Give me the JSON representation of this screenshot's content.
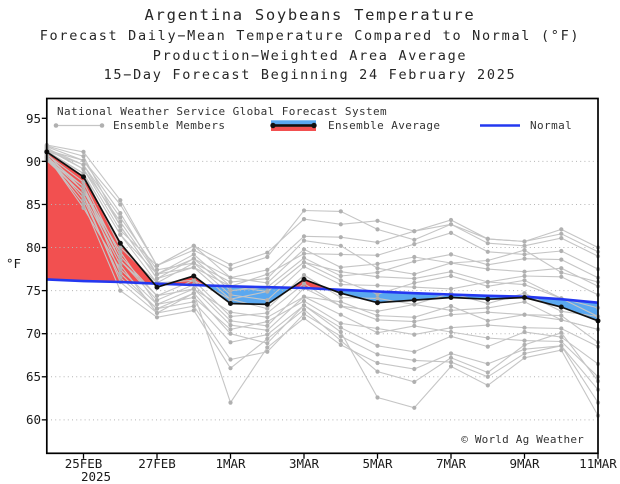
{
  "header": {
    "title": "Argentina Soybeans Temperature",
    "subtitle1": "Forecast Daily−Mean Temperature Compared to Normal (°F)",
    "subtitle2": "Production−Weighted Area Average",
    "subtitle3": "15−Day Forecast Beginning 24 February 2025"
  },
  "legend": {
    "source_label": "National Weather Service Global Forecast System",
    "members_label": "Ensemble Members",
    "average_label": "Ensemble Average",
    "normal_label": "Normal"
  },
  "footer_note": "© World Ag Weather",
  "colors": {
    "red_fill": "#f25050",
    "blue_fill": "#5aa8f0",
    "normal_line": "#2438f0",
    "average_line": "#111111",
    "member_line": "#c5c5c5",
    "member_dot": "#b0b0b0",
    "grid": "#b5b5b5",
    "frame": "#000000"
  },
  "chart_data": {
    "type": "line",
    "title": "Argentina Soybeans Temperature",
    "ylabel": "°F",
    "ylim": [
      56.2,
      97.4
    ],
    "y_ticks": [
      60,
      65,
      70,
      75,
      80,
      85,
      90,
      95
    ],
    "gridline_levels": [
      60,
      65,
      70,
      75,
      80,
      85,
      90
    ],
    "x_categories": [
      "24FEB",
      "25FEB",
      "26FEB",
      "27FEB",
      "28FEB",
      "1MAR",
      "2MAR",
      "3MAR",
      "4MAR",
      "5MAR",
      "6MAR",
      "7MAR",
      "8MAR",
      "9MAR",
      "10MAR",
      "11MAR"
    ],
    "x_tick_labels": [
      "25FEB",
      "27FEB",
      "1MAR",
      "3MAR",
      "5MAR",
      "7MAR",
      "9MAR",
      "11MAR"
    ],
    "x_tick_day_indices": [
      1,
      3,
      5,
      7,
      9,
      11,
      13,
      15
    ],
    "x_year_label": "2025",
    "series": [
      {
        "name": "Ensemble Average",
        "values": [
          91.1,
          88.2,
          80.5,
          75.4,
          76.7,
          73.5,
          73.4,
          76.3,
          74.7,
          73.6,
          73.9,
          74.2,
          74.0,
          74.2,
          73.1,
          71.5
        ]
      },
      {
        "name": "Normal",
        "values": [
          76.3,
          76.1,
          76.0,
          75.8,
          75.65,
          75.5,
          75.4,
          75.3,
          75.1,
          74.9,
          74.7,
          74.55,
          74.4,
          74.3,
          74.0,
          73.6
        ]
      }
    ],
    "members": [
      [
        91.5,
        89.6,
        83.5,
        77.4,
        78.2,
        76.0,
        76.4,
        80.8,
        80.2,
        77.6,
        76.9,
        78.2,
        77.5,
        77.2,
        77.6,
        75.5
      ],
      [
        91.3,
        90.1,
        85.0,
        77.9,
        79.7,
        77.5,
        78.9,
        84.3,
        84.2,
        82.1,
        80.9,
        82.7,
        80.5,
        80.2,
        81.1,
        79.0
      ],
      [
        90.5,
        87.1,
        78.5,
        73.9,
        75.7,
        71.5,
        70.9,
        75.3,
        73.2,
        71.6,
        71.4,
        72.2,
        72.5,
        72.2,
        72.1,
        69.0
      ],
      [
        91.8,
        90.6,
        82.5,
        76.4,
        78.7,
        75.0,
        75.4,
        78.8,
        76.7,
        77.1,
        78.4,
        79.2,
        78.0,
        78.7,
        78.6,
        76.5
      ],
      [
        90.7,
        85.6,
        76.5,
        72.9,
        74.7,
        70.0,
        68.9,
        73.3,
        70.7,
        68.6,
        67.9,
        69.7,
        68.5,
        70.2,
        69.6,
        66.5
      ],
      [
        91.2,
        88.6,
        81.5,
        75.9,
        78.2,
        74.5,
        73.9,
        77.8,
        75.7,
        75.6,
        75.4,
        75.2,
        76.0,
        75.7,
        74.1,
        72.0
      ],
      [
        90.4,
        86.6,
        79.5,
        73.4,
        74.2,
        70.5,
        71.4,
        73.8,
        71.2,
        70.6,
        69.9,
        70.7,
        71.0,
        70.7,
        70.6,
        68.5
      ],
      [
        91.4,
        89.1,
        83.0,
        76.9,
        79.2,
        75.5,
        76.9,
        79.3,
        79.2,
        79.1,
        80.4,
        81.7,
        79.5,
        79.2,
        79.6,
        77.5
      ],
      [
        90.6,
        84.6,
        77.5,
        73.4,
        75.2,
        72.5,
        71.9,
        74.3,
        73.7,
        72.1,
        71.9,
        73.2,
        71.5,
        72.2,
        71.6,
        70.5
      ],
      [
        91.6,
        89.1,
        82.0,
        77.9,
        80.2,
        76.5,
        77.4,
        81.3,
        81.2,
        80.6,
        81.9,
        82.7,
        81.0,
        80.7,
        81.6,
        79.5
      ],
      [
        90.8,
        87.6,
        79.0,
        74.4,
        76.2,
        72.0,
        72.4,
        75.8,
        73.2,
        72.6,
        73.4,
        72.7,
        73.0,
        73.7,
        71.6,
        70.5
      ],
      [
        91.1,
        88.6,
        80.0,
        75.9,
        76.2,
        74.0,
        72.9,
        76.8,
        74.2,
        74.1,
        73.4,
        74.7,
        73.5,
        74.7,
        72.6,
        72.0
      ],
      [
        90.3,
        86.1,
        78.0,
        72.4,
        74.7,
        62.0,
        68.4,
        71.8,
        68.7,
        66.6,
        65.9,
        67.7,
        66.5,
        68.2,
        68.6,
        63.5
      ],
      [
        91.9,
        91.1,
        85.5,
        77.9,
        80.2,
        78.0,
        79.4,
        83.3,
        82.7,
        83.1,
        81.9,
        83.2,
        81.0,
        80.7,
        82.1,
        80.0
      ],
      [
        90.2,
        87.1,
        77.0,
        72.9,
        73.7,
        69.0,
        69.9,
        73.3,
        70.2,
        62.6,
        61.4,
        66.2,
        64.0,
        67.2,
        68.1,
        60.5
      ],
      [
        91.2,
        89.6,
        82.5,
        76.4,
        77.7,
        75.5,
        74.9,
        78.3,
        77.2,
        76.6,
        76.4,
        77.2,
        76.0,
        76.7,
        76.6,
        74.5
      ],
      [
        90.9,
        86.6,
        78.5,
        74.4,
        75.2,
        71.0,
        70.4,
        74.3,
        72.2,
        70.1,
        70.9,
        70.2,
        69.5,
        69.2,
        69.1,
        65.0
      ],
      [
        91.7,
        90.1,
        84.0,
        76.9,
        78.7,
        76.5,
        75.9,
        79.8,
        77.7,
        78.1,
        78.9,
        78.2,
        78.5,
        79.7,
        77.1,
        76.0
      ],
      [
        90.1,
        86.1,
        76.0,
        72.4,
        73.2,
        67.0,
        67.9,
        72.3,
        69.7,
        67.6,
        66.9,
        66.7,
        65.0,
        67.7,
        68.6,
        62.0
      ],
      [
        91.0,
        88.6,
        81.5,
        76.9,
        77.7,
        74.0,
        74.9,
        78.3,
        76.2,
        74.6,
        75.9,
        76.7,
        75.5,
        76.2,
        74.1,
        73.0
      ],
      [
        90.5,
        85.1,
        75.0,
        71.9,
        72.7,
        66.0,
        69.4,
        72.8,
        69.2,
        65.6,
        64.4,
        67.2,
        65.5,
        68.7,
        70.1,
        64.5
      ]
    ]
  }
}
